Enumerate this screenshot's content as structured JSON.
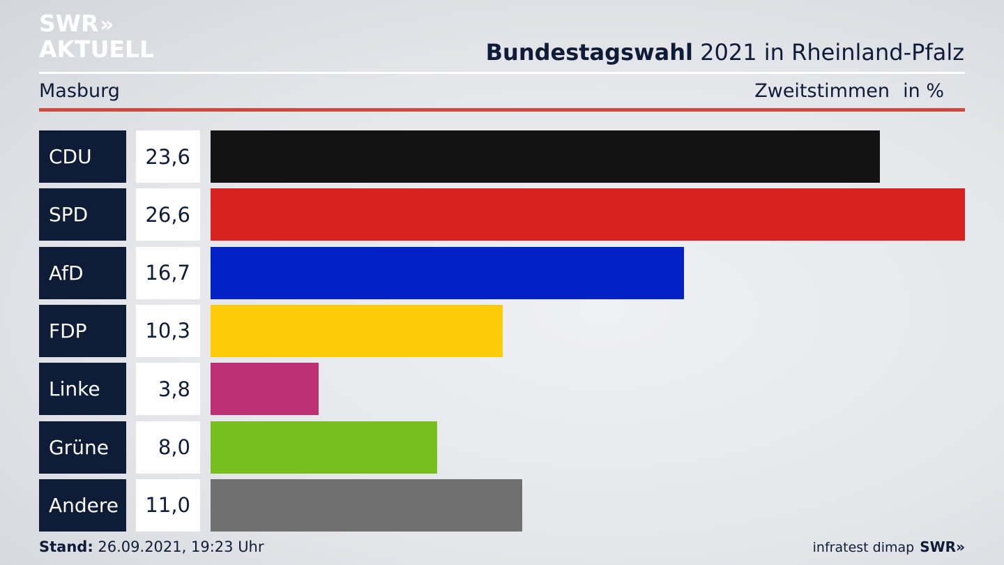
{
  "brand": {
    "logo_line1": "SWR",
    "logo_arrows": "»",
    "logo_line2": "AKTUELL"
  },
  "header": {
    "title_bold": "Bundestagswahl",
    "title_rest": "2021 in Rheinland-Pfalz",
    "location": "Masburg",
    "vote_type": "Zweitstimmen",
    "unit": "in %"
  },
  "chart_data": {
    "type": "bar",
    "orientation": "horizontal",
    "title": "Bundestagswahl 2021 in Rheinland-Pfalz",
    "subtitle": "Masburg",
    "xlabel": "Zweitstimmen in %",
    "categories": [
      "CDU",
      "SPD",
      "AfD",
      "FDP",
      "Linke",
      "Grüne",
      "Andere"
    ],
    "values": [
      23.6,
      26.6,
      16.7,
      10.3,
      3.8,
      8.0,
      11.0
    ],
    "value_labels": [
      "23,6",
      "26,6",
      "16,7",
      "10,3",
      "3,8",
      "8,0",
      "11,0"
    ],
    "colors": [
      "#131313",
      "#d72220",
      "#0222c8",
      "#fccc0a",
      "#be3075",
      "#78be1e",
      "#707070"
    ],
    "xlim": [
      0,
      26.6
    ],
    "grid": false,
    "legend": "none"
  },
  "footer": {
    "stand_label": "Stand:",
    "stand_value": "26.09.2021, 19:23 Uhr",
    "source": "infratest dimap",
    "brand": "SWR»"
  }
}
